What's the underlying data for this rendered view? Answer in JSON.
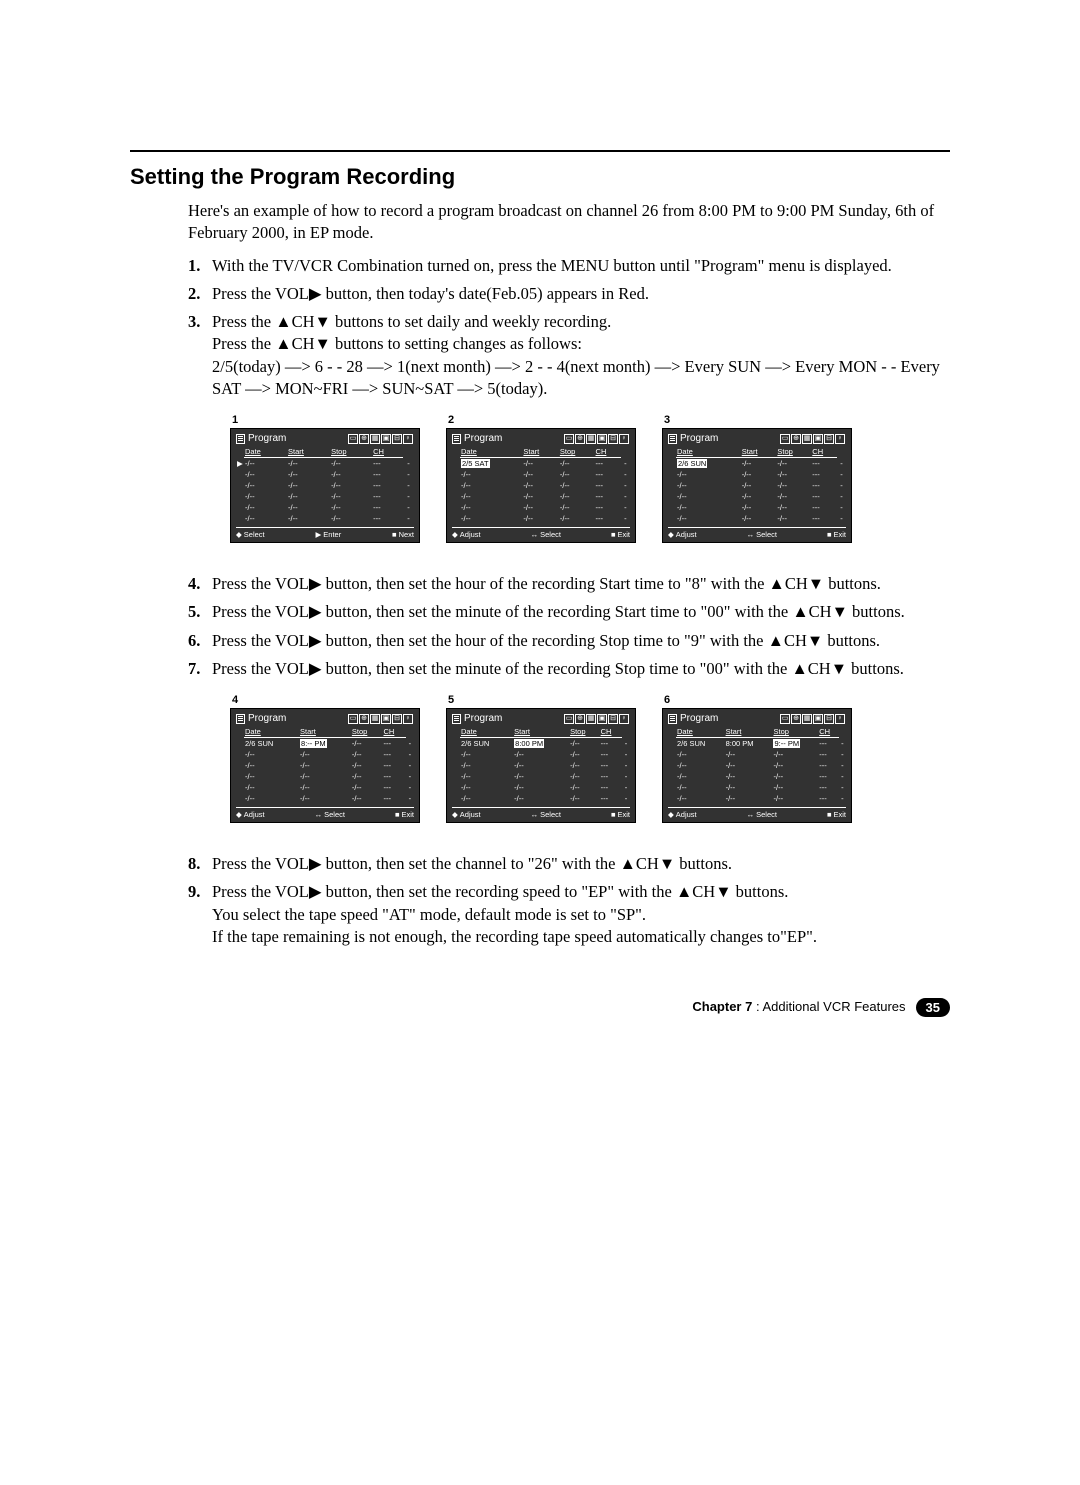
{
  "title": "Setting the Program Recording",
  "intro": "Here's an example of how to record a program broadcast on channel 26 from 8:00 PM to 9:00 PM Sunday, 6th of February 2000, in EP mode.",
  "glyphs": {
    "right": "▶",
    "up": "▲",
    "down": "▼",
    "stop": "■",
    "updown": "◆",
    "leftright": "↔"
  },
  "steps1": [
    {
      "n": "1.",
      "t": "With the TV/VCR Combination turned on, press the MENU button until \"Program\" menu is displayed."
    },
    {
      "n": "2.",
      "t": "Press the VOL▶ button, then today's date(Feb.05) appears in Red."
    },
    {
      "n": "3.",
      "t": "Press the ▲CH▼ buttons to set daily and weekly recording.\nPress the ▲CH▼ buttons to setting changes as follows:\n2/5(today) —> 6 - - 28 —> 1(next month) —> 2 - - 4(next month) —> Every SUN —> Every MON - - Every SAT —> MON~FRI —> SUN~SAT —> 5(today)."
    }
  ],
  "steps2": [
    {
      "n": "4.",
      "t": "Press the VOL▶ button, then set the hour of the recording Start time to \"8\" with the ▲CH▼ buttons."
    },
    {
      "n": "5.",
      "t": "Press the VOL▶ button, then set the minute of the recording Start time to \"00\" with the ▲CH▼ buttons."
    },
    {
      "n": "6.",
      "t": "Press the VOL▶ button, then set the hour of the recording Stop time to \"9\" with the ▲CH▼ buttons."
    },
    {
      "n": "7.",
      "t": "Press the VOL▶ button, then set the minute of the recording Stop time to \"00\" with the ▲CH▼  buttons."
    }
  ],
  "steps3": [
    {
      "n": "8.",
      "t": "Press the VOL▶ button, then set the channel to \"26\" with the ▲CH▼ buttons."
    },
    {
      "n": "9.",
      "t": "Press the VOL▶ button, then set the recording speed to \"EP\" with the ▲CH▼ buttons.\nYou select the tape speed \"AT\" mode, default mode is set to \"SP\".\nIf the tape remaining is not enough, the recording tape speed automatically changes to\"EP\"."
    }
  ],
  "osd": {
    "title": "Program",
    "headers": [
      "Date",
      "Start",
      "Stop",
      "CH",
      ""
    ],
    "icons": [
      "▭",
      "⊕",
      "▦",
      "▣",
      "⊟",
      "♀"
    ],
    "footers": {
      "selectEnterNext": [
        {
          "g": "◆",
          "l": "Select"
        },
        {
          "g": "▶",
          "l": "Enter"
        },
        {
          "g": "■",
          "l": "Next"
        }
      ],
      "adjustSelectExit": [
        {
          "g": "◆",
          "l": "Adjust"
        },
        {
          "g": "↔",
          "l": "Select"
        },
        {
          "g": "■",
          "l": "Exit"
        }
      ]
    }
  },
  "screensA": [
    {
      "num": "1",
      "pointerRow": 0,
      "rows": [
        [
          "-/--",
          "-/--",
          "-/--",
          "---",
          "-"
        ],
        [
          "-/--",
          "-/--",
          "-/--",
          "---",
          "-"
        ],
        [
          "-/--",
          "-/--",
          "-/--",
          "---",
          "-"
        ],
        [
          "-/--",
          "-/--",
          "-/--",
          "---",
          "-"
        ],
        [
          "-/--",
          "-/--",
          "-/--",
          "---",
          "-"
        ],
        [
          "-/--",
          "-/--",
          "-/--",
          "---",
          "-"
        ]
      ],
      "highlights": {},
      "footer": "selectEnterNext"
    },
    {
      "num": "2",
      "rows": [
        [
          "2/5 SAT",
          "-/--",
          "-/--",
          "---",
          "-"
        ],
        [
          "-/--",
          "-/--",
          "-/--",
          "---",
          "-"
        ],
        [
          "-/--",
          "-/--",
          "-/--",
          "---",
          "-"
        ],
        [
          "-/--",
          "-/--",
          "-/--",
          "---",
          "-"
        ],
        [
          "-/--",
          "-/--",
          "-/--",
          "---",
          "-"
        ],
        [
          "-/--",
          "-/--",
          "-/--",
          "---",
          "-"
        ]
      ],
      "highlights": {
        "0": [
          "0"
        ]
      },
      "footer": "adjustSelectExit"
    },
    {
      "num": "3",
      "rows": [
        [
          "2/6 SUN",
          "-/--",
          "-/--",
          "---",
          "-"
        ],
        [
          "-/--",
          "-/--",
          "-/--",
          "---",
          "-"
        ],
        [
          "-/--",
          "-/--",
          "-/--",
          "---",
          "-"
        ],
        [
          "-/--",
          "-/--",
          "-/--",
          "---",
          "-"
        ],
        [
          "-/--",
          "-/--",
          "-/--",
          "---",
          "-"
        ],
        [
          "-/--",
          "-/--",
          "-/--",
          "---",
          "-"
        ]
      ],
      "highlights": {
        "0": [
          "0"
        ]
      },
      "footer": "adjustSelectExit"
    }
  ],
  "screensB": [
    {
      "num": "4",
      "rows": [
        [
          "2/6 SUN",
          "8:-- PM",
          "-/--",
          "---",
          "-"
        ],
        [
          "-/--",
          "-/--",
          "-/--",
          "---",
          "-"
        ],
        [
          "-/--",
          "-/--",
          "-/--",
          "---",
          "-"
        ],
        [
          "-/--",
          "-/--",
          "-/--",
          "---",
          "-"
        ],
        [
          "-/--",
          "-/--",
          "-/--",
          "---",
          "-"
        ],
        [
          "-/--",
          "-/--",
          "-/--",
          "---",
          "-"
        ]
      ],
      "highlights": {
        "0": [
          "1"
        ]
      },
      "footer": "adjustSelectExit"
    },
    {
      "num": "5",
      "rows": [
        [
          "2/6 SUN",
          "8:00 PM",
          "-/--",
          "---",
          "-"
        ],
        [
          "-/--",
          "-/--",
          "-/--",
          "---",
          "-"
        ],
        [
          "-/--",
          "-/--",
          "-/--",
          "---",
          "-"
        ],
        [
          "-/--",
          "-/--",
          "-/--",
          "---",
          "-"
        ],
        [
          "-/--",
          "-/--",
          "-/--",
          "---",
          "-"
        ],
        [
          "-/--",
          "-/--",
          "-/--",
          "---",
          "-"
        ]
      ],
      "highlights": {
        "0": [
          "1"
        ]
      },
      "footer": "adjustSelectExit"
    },
    {
      "num": "6",
      "rows": [
        [
          "2/6 SUN",
          "8:00 PM",
          "9:-- PM",
          "---",
          "-"
        ],
        [
          "-/--",
          "-/--",
          "-/--",
          "---",
          "-"
        ],
        [
          "-/--",
          "-/--",
          "-/--",
          "---",
          "-"
        ],
        [
          "-/--",
          "-/--",
          "-/--",
          "---",
          "-"
        ],
        [
          "-/--",
          "-/--",
          "-/--",
          "---",
          "-"
        ],
        [
          "-/--",
          "-/--",
          "-/--",
          "---",
          "-"
        ]
      ],
      "highlights": {
        "0": [
          "2"
        ]
      },
      "footer": "adjustSelectExit"
    }
  ],
  "footer": {
    "chapter": "Chapter 7",
    "label": " : Additional VCR Features",
    "page": "35"
  }
}
